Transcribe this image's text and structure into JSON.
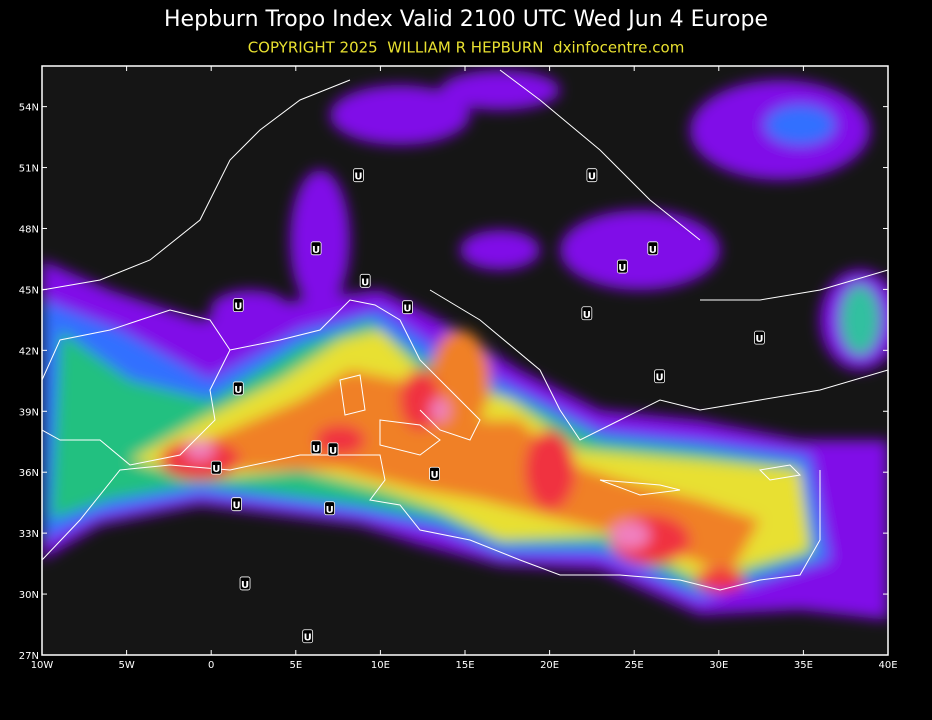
{
  "header": {
    "title": "Hepburn Tropo Index Valid 2100 UTC Wed Jun 4 Europe",
    "subtitle": "COPYRIGHT 2025  WILLIAM R HEPBURN  dxinfocentre.com"
  },
  "map": {
    "lon_range": [
      -10,
      40
    ],
    "lat_range": [
      27,
      56
    ],
    "lat_ticks": [
      {
        "value": 27,
        "label": "27N"
      },
      {
        "value": 30,
        "label": "30N"
      },
      {
        "value": 33,
        "label": "33N"
      },
      {
        "value": 36,
        "label": "36N"
      },
      {
        "value": 39,
        "label": "39N"
      },
      {
        "value": 42,
        "label": "42N"
      },
      {
        "value": 45,
        "label": "45N"
      },
      {
        "value": 48,
        "label": "48N"
      },
      {
        "value": 51,
        "label": "51N"
      },
      {
        "value": 54,
        "label": "54N"
      }
    ],
    "lon_ticks": [
      {
        "value": -10,
        "label": "10W"
      },
      {
        "value": -5,
        "label": "5W"
      },
      0,
      {
        "value": 5,
        "label": "5E"
      },
      {
        "value": 10,
        "label": "10E"
      },
      {
        "value": 15,
        "label": "15E"
      },
      {
        "value": 20,
        "label": "20E"
      },
      {
        "value": 25,
        "label": "25E"
      },
      {
        "value": 30,
        "label": "30E"
      },
      {
        "value": 35,
        "label": "35E"
      },
      {
        "value": 40,
        "label": "40E"
      }
    ],
    "markers": [
      {
        "label": "U",
        "lon": 8.7,
        "lat": 50.6
      },
      {
        "label": "U",
        "lon": 22.5,
        "lat": 50.6
      },
      {
        "label": "U",
        "lon": 6.2,
        "lat": 47.0
      },
      {
        "label": "U",
        "lon": 26.1,
        "lat": 47.0
      },
      {
        "label": "U",
        "lon": 24.3,
        "lat": 46.1
      },
      {
        "label": "U",
        "lon": 9.1,
        "lat": 45.4
      },
      {
        "label": "U",
        "lon": 1.6,
        "lat": 44.2
      },
      {
        "label": "U",
        "lon": 11.6,
        "lat": 44.1
      },
      {
        "label": "U",
        "lon": 22.2,
        "lat": 43.8
      },
      {
        "label": "U",
        "lon": 32.4,
        "lat": 42.6
      },
      {
        "label": "U",
        "lon": 1.6,
        "lat": 40.1
      },
      {
        "label": "U",
        "lon": 26.5,
        "lat": 40.7
      },
      {
        "label": "U",
        "lon": 6.2,
        "lat": 37.2
      },
      {
        "label": "U",
        "lon": 7.2,
        "lat": 37.1
      },
      {
        "label": "U",
        "lon": 0.3,
        "lat": 36.2
      },
      {
        "label": "U",
        "lon": 13.2,
        "lat": 35.9
      },
      {
        "label": "U",
        "lon": 1.5,
        "lat": 34.4
      },
      {
        "label": "U",
        "lon": 7.0,
        "lat": 34.2
      },
      {
        "label": "U",
        "lon": 2.0,
        "lat": 30.5
      },
      {
        "label": "U",
        "lon": 5.7,
        "lat": 27.9
      }
    ]
  }
}
